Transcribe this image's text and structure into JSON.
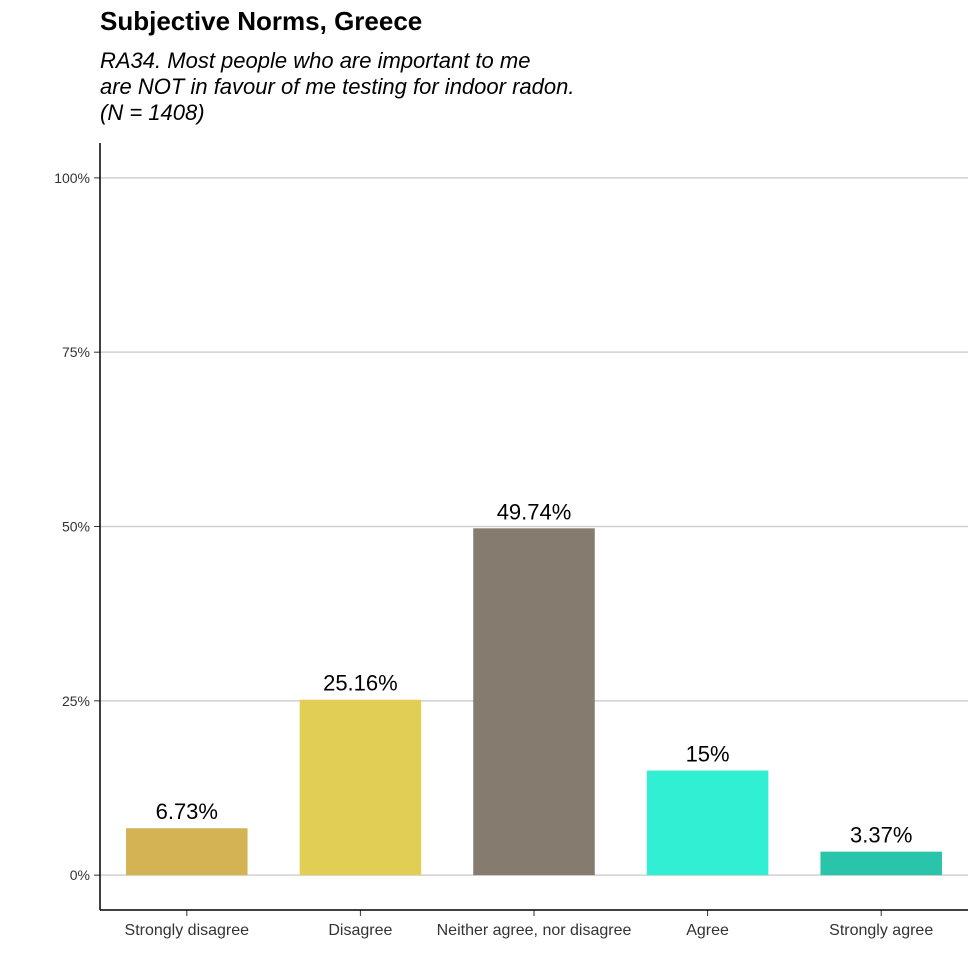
{
  "chart_data": {
    "type": "bar",
    "title": "Subjective Norms, Greece",
    "subtitle": [
      "RA34. Most people who are important to me",
      "are NOT in favour of me testing for indoor radon.",
      "(N = 1408)"
    ],
    "categories": [
      "Strongly disagree",
      "Disagree",
      "Neither agree, nor disagree",
      "Agree",
      "Strongly agree"
    ],
    "values": [
      6.73,
      25.16,
      49.74,
      15,
      3.37
    ],
    "data_labels": [
      "6.73%",
      "25.16%",
      "49.74%",
      "15%",
      "3.37%"
    ],
    "colors": [
      "#D4B354",
      "#E1CF55",
      "#857B6E",
      "#31EFD2",
      "#29C4AA"
    ],
    "ylim": [
      -5,
      105
    ],
    "yticks": [
      0,
      25,
      50,
      75,
      100
    ],
    "ytick_labels": [
      "0%",
      "25%",
      "50%",
      "75%",
      "100%"
    ],
    "grid": "horizontal",
    "legend": "none",
    "xlabel": "",
    "ylabel": ""
  }
}
